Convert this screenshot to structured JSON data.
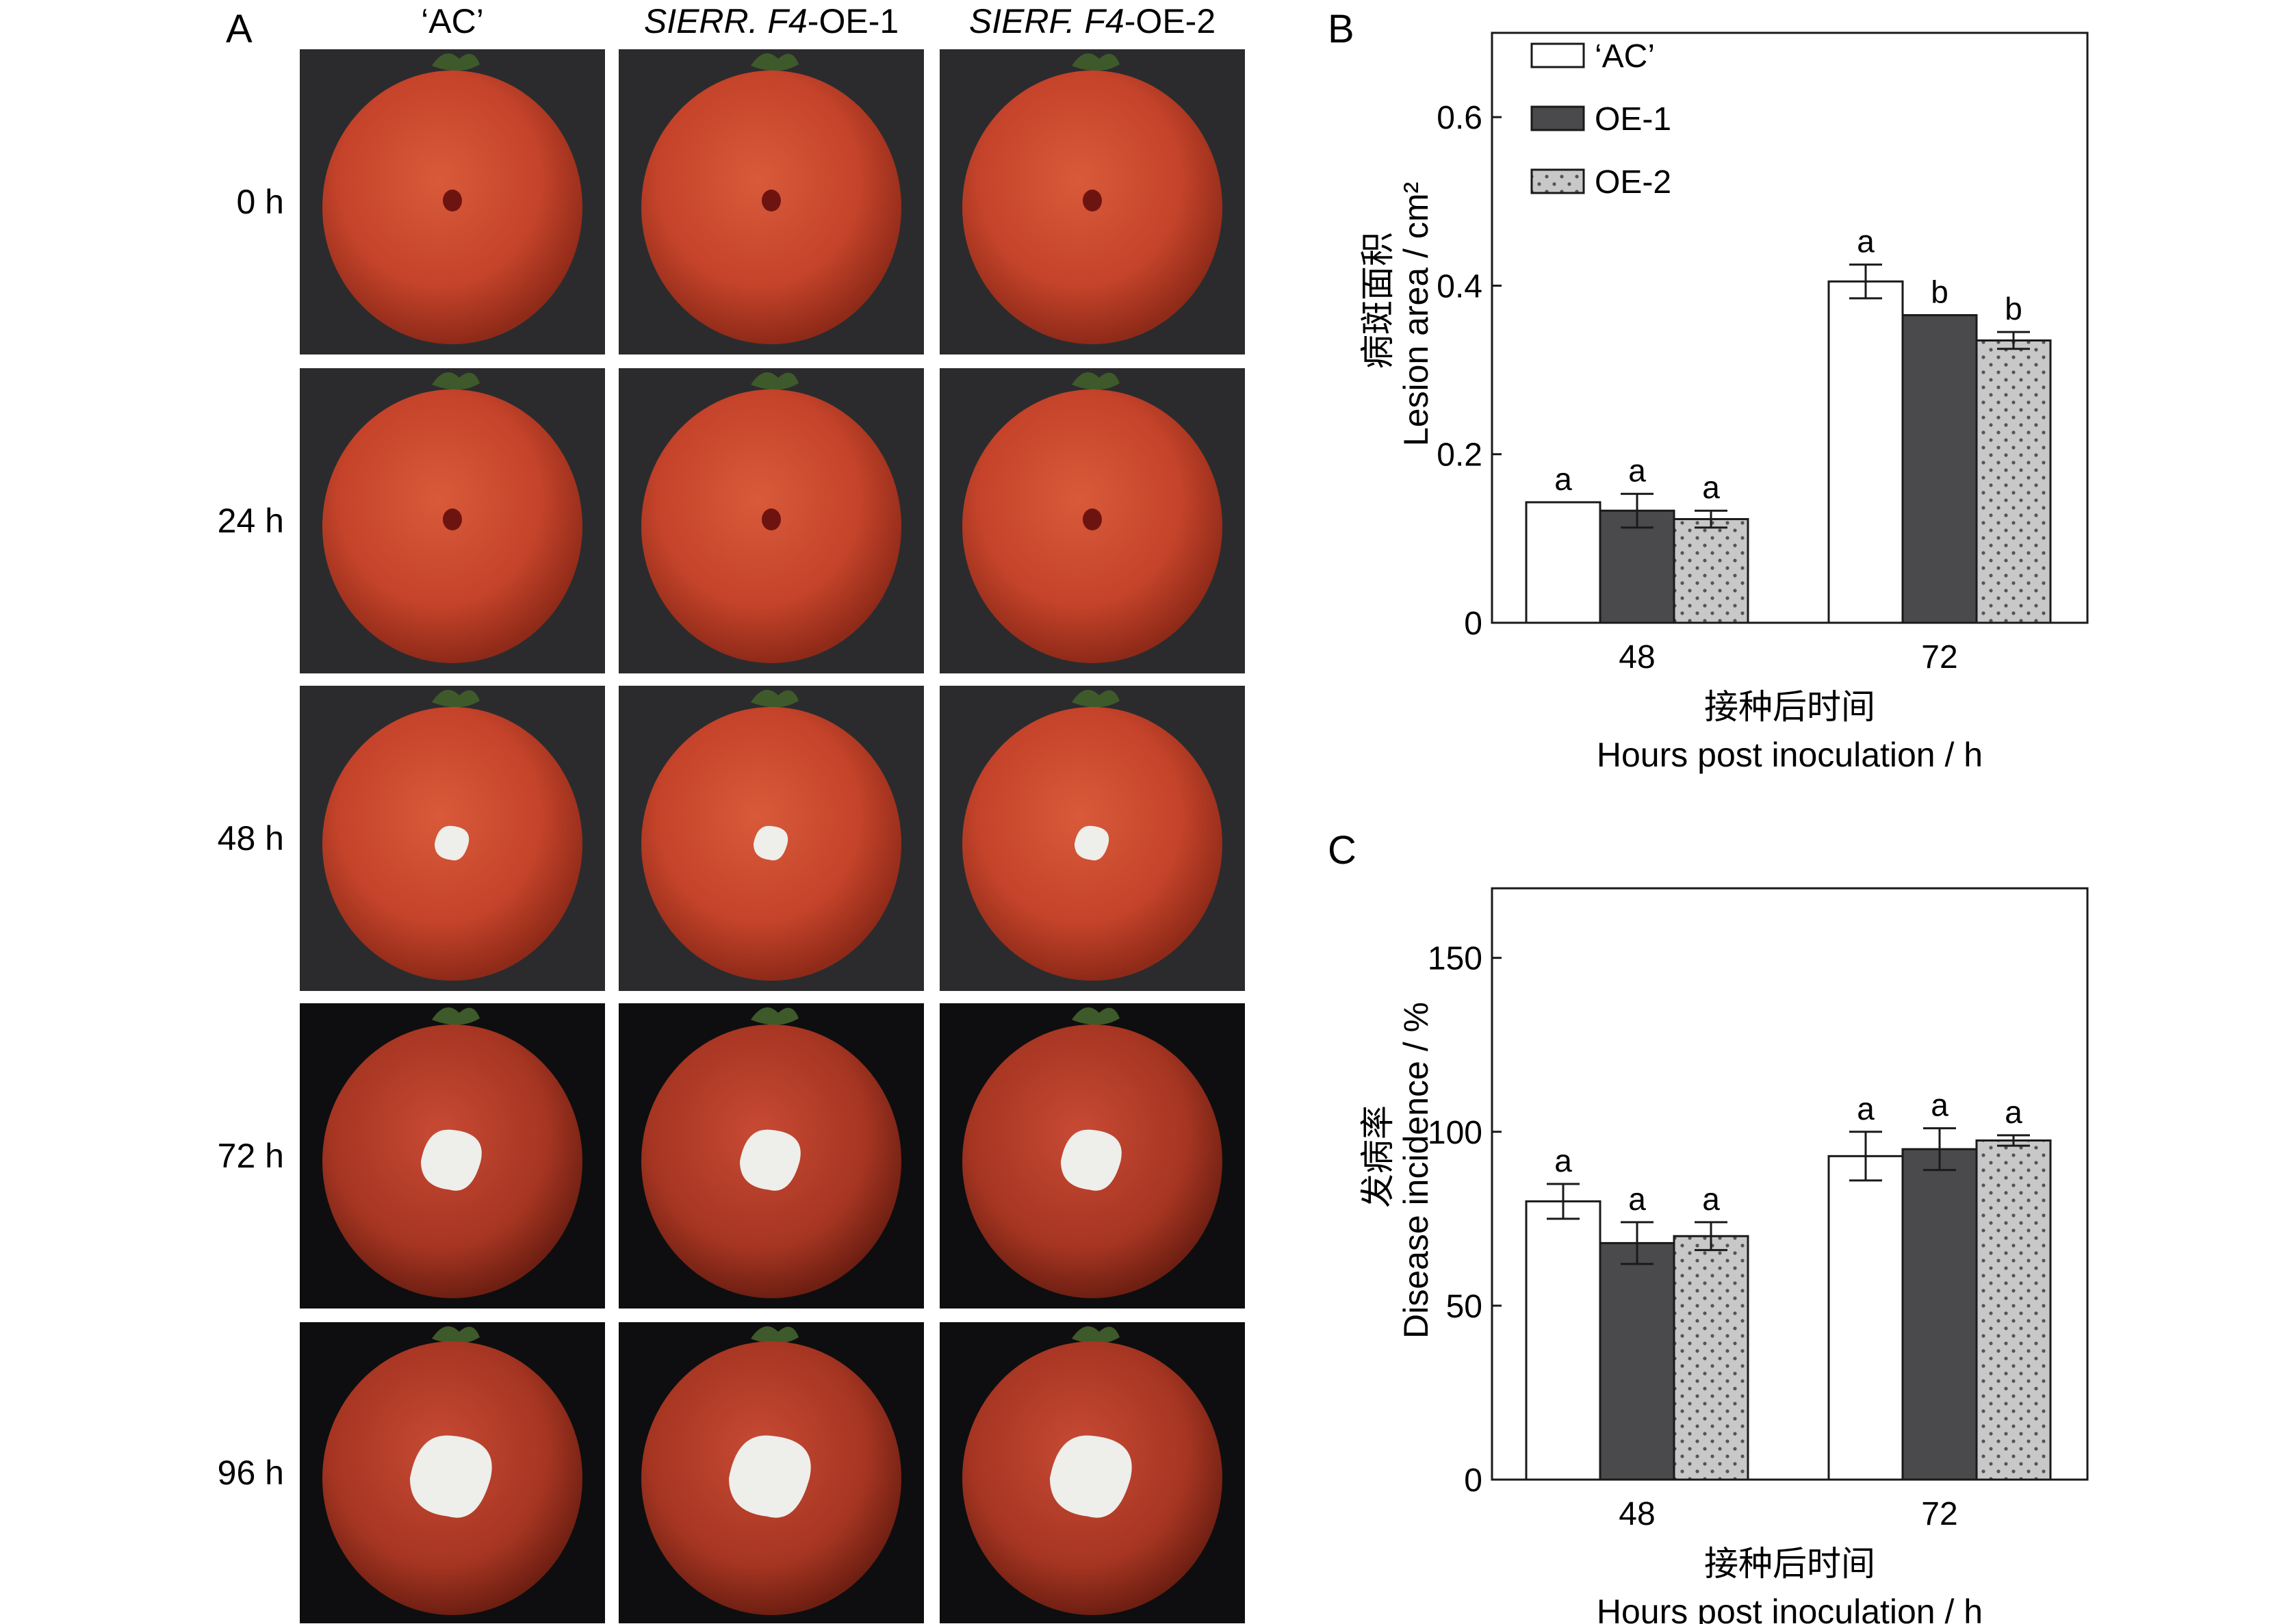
{
  "panel_a": {
    "letter": "A",
    "columns": [
      {
        "label": "‘AC’",
        "italic_part": "",
        "rest": "‘AC’"
      },
      {
        "label": "SIERR. F4-OE-1",
        "italic_part": "SIERR. F4",
        "rest": "-OE-1"
      },
      {
        "label": "SIERF. F4-OE-2",
        "italic_part": "SIERF. F4",
        "rest": "-OE-2"
      }
    ],
    "rows": [
      "0 h",
      "24 h",
      "48 h",
      "72 h",
      "96 h"
    ],
    "lesion_stage": [
      0,
      0,
      1,
      2,
      3
    ],
    "colors": {
      "fruit": "#c8442a",
      "fruit_dark": "#a83420",
      "background_light": "#2b2b2e",
      "background_dark": "#0e0e10",
      "stem": "#3e5a2a",
      "lesion": "#eeeeea"
    }
  },
  "chart_data": [
    {
      "panel": "B",
      "type": "bar",
      "categories": [
        "48",
        "72"
      ],
      "series": [
        {
          "name": "‘AC’",
          "values": [
            0.143,
            0.405
          ],
          "errors": [
            0,
            0.02
          ],
          "letters": [
            "a",
            "a"
          ],
          "fill": "#ffffff"
        },
        {
          "name": "OE-1",
          "values": [
            0.133,
            0.365
          ],
          "errors": [
            0.02,
            0
          ],
          "letters": [
            "a",
            "b"
          ],
          "fill": "#4a4a4c"
        },
        {
          "name": "OE-2",
          "values": [
            0.123,
            0.335
          ],
          "errors": [
            0.01,
            0.01
          ],
          "letters": [
            "a",
            "b"
          ],
          "fill": "#c8c8c8",
          "pattern": "dots"
        }
      ],
      "xlabel_cn": "接种后时间",
      "xlabel": "Hours post inoculation / h",
      "ylabel_cn": "病斑面积",
      "ylabel": "Lesion area / cm²",
      "ylim": [
        0,
        0.7
      ],
      "yticks": [
        0,
        0.2,
        0.4,
        0.6
      ],
      "ytick_labels": [
        "0",
        "0.2",
        "0.4",
        "0.6"
      ],
      "legend": "top-left",
      "grid": false
    },
    {
      "panel": "C",
      "type": "bar",
      "categories": [
        "48",
        "72"
      ],
      "series": [
        {
          "name": "‘AC’",
          "values": [
            80,
            93
          ],
          "errors": [
            5,
            7
          ],
          "letters": [
            "a",
            "a"
          ],
          "fill": "#ffffff"
        },
        {
          "name": "OE-1",
          "values": [
            68,
            95
          ],
          "errors": [
            6,
            6
          ],
          "letters": [
            "a",
            "a"
          ],
          "fill": "#4a4a4c"
        },
        {
          "name": "OE-2",
          "values": [
            70,
            97.5
          ],
          "errors": [
            4,
            1.5
          ],
          "letters": [
            "a",
            "a"
          ],
          "fill": "#c8c8c8",
          "pattern": "dots"
        }
      ],
      "xlabel_cn": "接种后时间",
      "xlabel": "Hours post inoculation / h",
      "ylabel_cn": "发病率",
      "ylabel": "Disease incidence / %",
      "ylim": [
        0,
        170
      ],
      "yticks": [
        0,
        50,
        100,
        150
      ],
      "ytick_labels": [
        "0",
        "50",
        "100",
        "150"
      ],
      "grid": false
    }
  ]
}
